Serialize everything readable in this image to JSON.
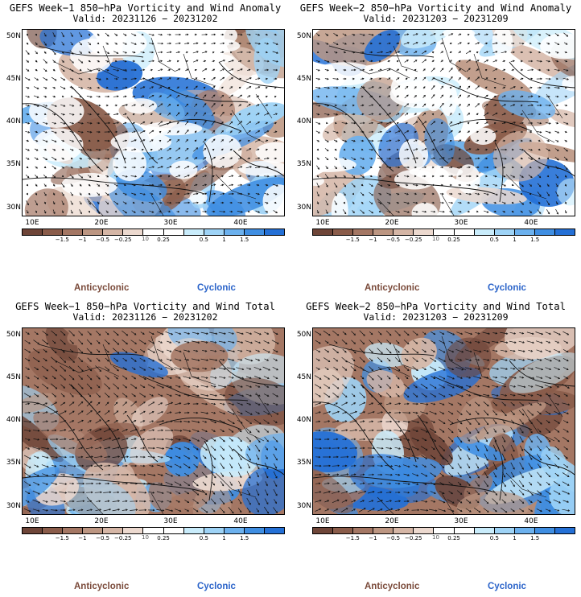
{
  "panels": [
    {
      "title": "GEFS Week−1 850−hPa Vorticity and Wind Anomaly",
      "valid": "Valid: 20231126 − 20231202"
    },
    {
      "title": "GEFS Week−2 850−hPa Vorticity and Wind Anomaly",
      "valid": "Valid: 20231203 − 20231209"
    },
    {
      "title": "GEFS Week−1 850−hPa Vorticity and Wind Total",
      "valid": "Valid: 20231126 − 20231202"
    },
    {
      "title": "GEFS Week−2 850−hPa Vorticity and Wind Total",
      "valid": "Valid: 20231203 − 20231209"
    }
  ],
  "lat_labels": [
    "50N",
    "45N",
    "40N",
    "35N",
    "30N"
  ],
  "lon_labels": [
    "10E",
    "20E",
    "30E",
    "40E"
  ],
  "colorbar": {
    "ticks": [
      "−1.5",
      "−1",
      "−0.5",
      "−0.25",
      "0.25",
      "0.5",
      "1",
      "1.5"
    ],
    "units": "10",
    "colors": [
      "#6e4538",
      "#8a5c4a",
      "#a47764",
      "#bc9682",
      "#d5b6a6",
      "#ecd9cf",
      "#ffffff",
      "#ffffff",
      "#c9ecfb",
      "#9ed3f6",
      "#6cb1ee",
      "#3f8ee2",
      "#2470d6"
    ]
  },
  "legend": {
    "anticyclonic": "Anticyclonic",
    "cyclonic": "Cyclonic"
  }
}
